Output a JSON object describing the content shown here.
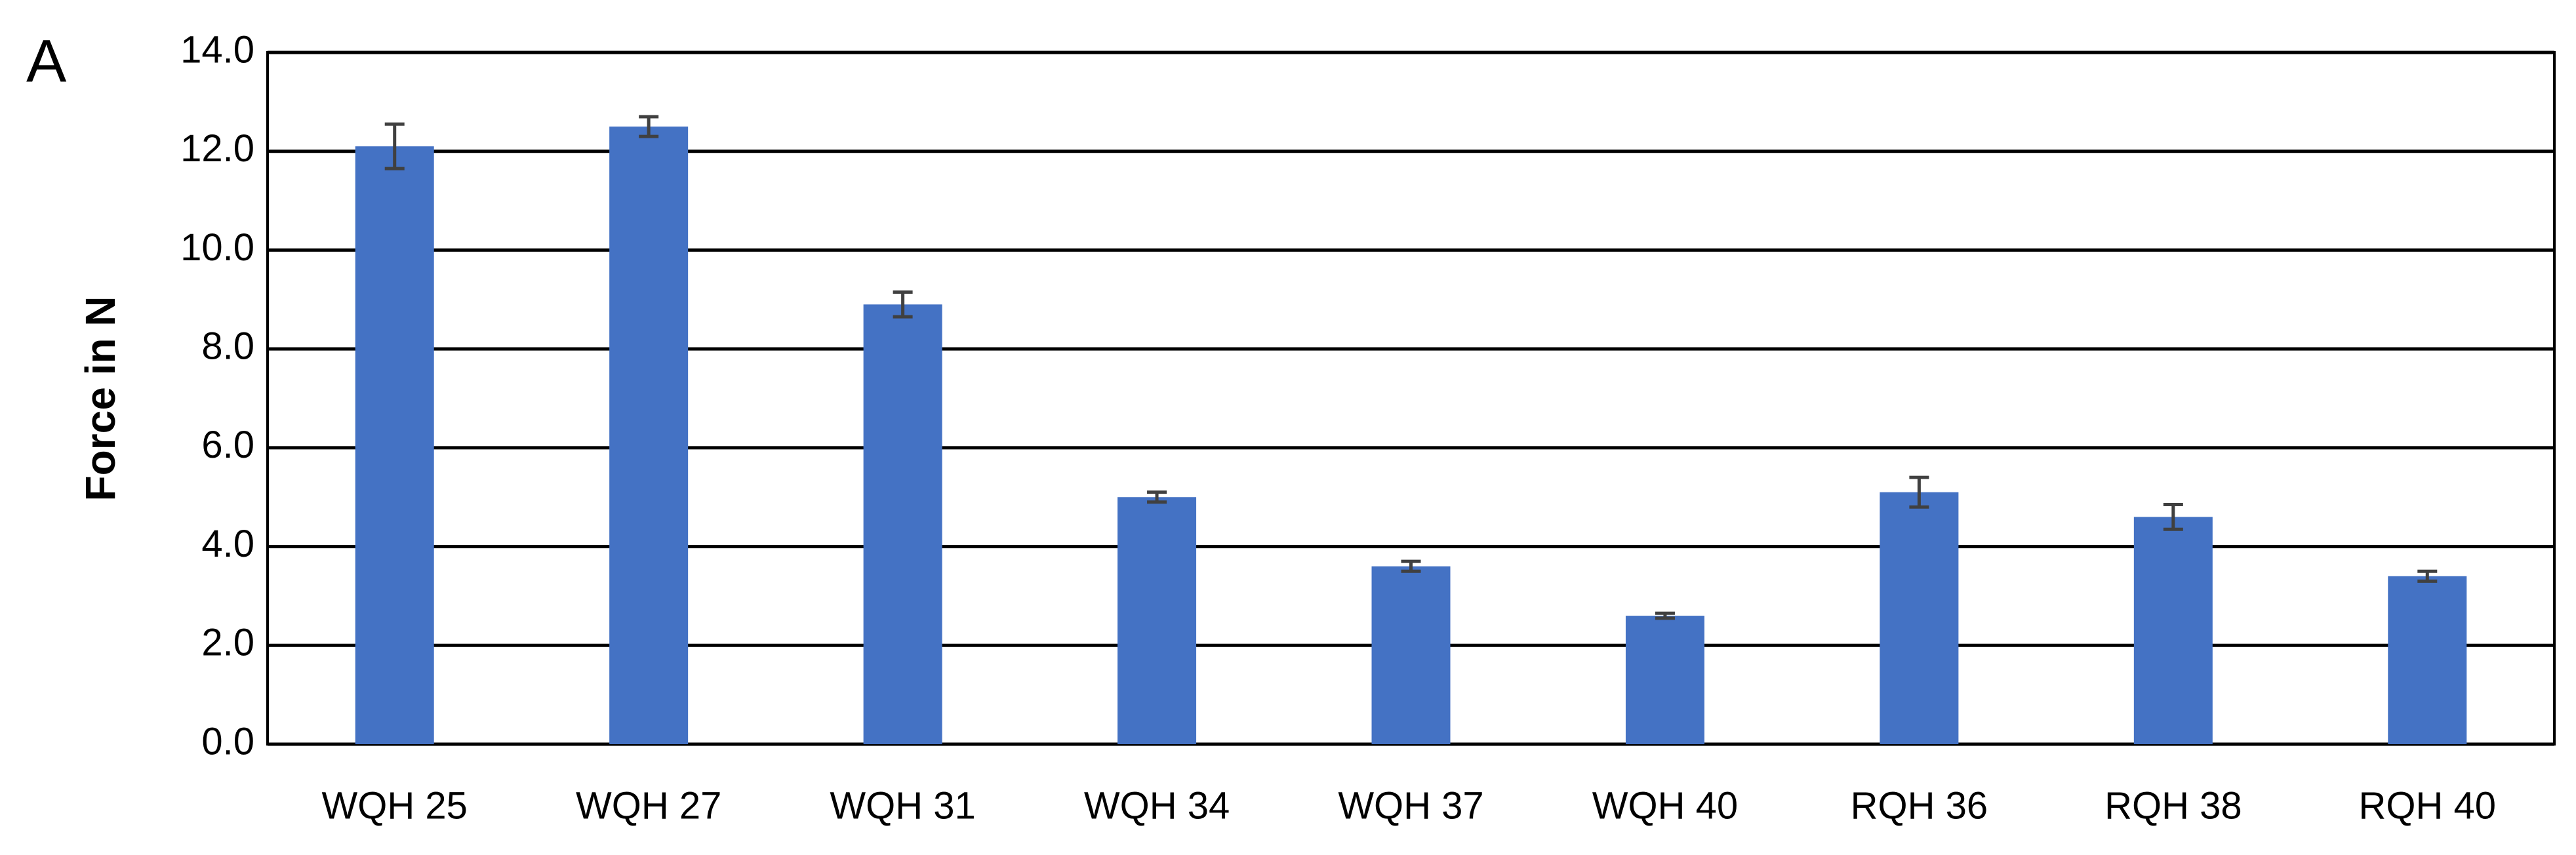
{
  "chart_data": {
    "type": "bar",
    "panel_label": "A",
    "y_label": "Force in N",
    "categories": [
      "WQH 25",
      "WQH 27",
      "WQH 31",
      "WQH 34",
      "WQH 37",
      "WQH 40",
      "RQH 36",
      "RQH 38",
      "RQH 40"
    ],
    "values": [
      12.1,
      12.5,
      8.9,
      5.0,
      3.6,
      2.6,
      5.1,
      4.6,
      3.4
    ],
    "errors": [
      0.45,
      0.2,
      0.25,
      0.1,
      0.1,
      0.05,
      0.3,
      0.25,
      0.1
    ],
    "color": "#4472c4",
    "error_color": "#404040",
    "ylim": [
      0,
      14
    ],
    "yticks": [
      {
        "value": 0,
        "label": "0.0"
      },
      {
        "value": 2,
        "label": "2.0"
      },
      {
        "value": 4,
        "label": "4.0"
      },
      {
        "value": 6,
        "label": "6.0"
      },
      {
        "value": 8,
        "label": "8.0"
      },
      {
        "value": 10,
        "label": "10.0"
      },
      {
        "value": 12,
        "label": "12.0"
      },
      {
        "value": 14,
        "label": "14.0"
      }
    ],
    "grid": true
  }
}
